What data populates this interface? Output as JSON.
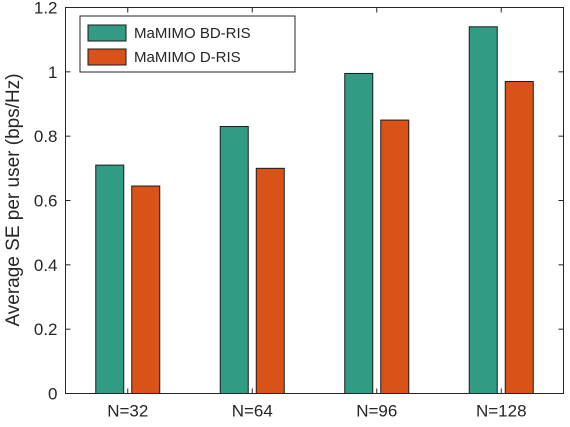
{
  "chart_data": {
    "type": "bar",
    "title": "",
    "xlabel": "",
    "ylabel": "Average SE per user (bps/Hz)",
    "categories": [
      "N=32",
      "N=64",
      "N=96",
      "N=128"
    ],
    "series": [
      {
        "name": "MaMIMO BD-RIS",
        "color": "#319B84",
        "values": [
          0.71,
          0.83,
          0.995,
          1.14
        ]
      },
      {
        "name": "MaMIMO D-RIS",
        "color": "#D95319",
        "values": [
          0.645,
          0.7,
          0.85,
          0.97
        ]
      }
    ],
    "ylim": [
      0,
      1.2
    ],
    "yticks": [
      0,
      0.2,
      0.4,
      0.6,
      0.8,
      1,
      1.2
    ],
    "ytick_labels": [
      "0",
      "0.2",
      "0.4",
      "0.6",
      "0.8",
      "1",
      "1.2"
    ],
    "grid": false,
    "legend_position": "top-left"
  }
}
